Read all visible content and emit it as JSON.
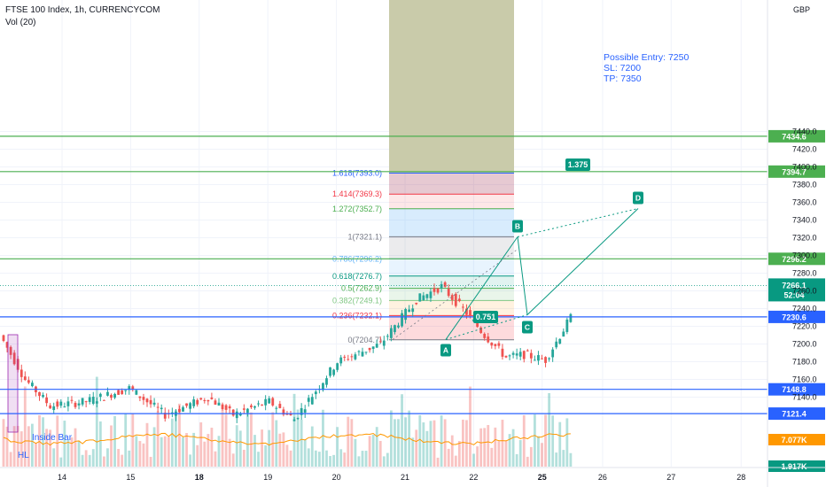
{
  "header": {
    "title": "FTSE 100 Index, 1h, CURRENCYCOM",
    "indicator": "Vol (20)",
    "currency": "GBP"
  },
  "note": {
    "entry": "Possible Entry: 7250",
    "sl": "SL: 7200",
    "tp": "TP: 7350"
  },
  "annotations": {
    "inside_bar": "Inside Bar",
    "hl": "HL"
  },
  "colors": {
    "up": "#26a69a",
    "down": "#ef5350",
    "green_line": "#4caf50",
    "blue_line": "#2962ff",
    "orange_ma": "#ff9800",
    "harmonic": "#089981"
  },
  "chart_data": {
    "type": "candlestick",
    "title": "FTSE 100 Index, 1h, CURRENCYCOM",
    "xlabel": "",
    "ylabel": "GBP",
    "ylim": [
      7100,
      7450
    ],
    "y_ticks": [
      7140,
      7160,
      7180,
      7200,
      7220,
      7240,
      7260,
      7280,
      7300,
      7320,
      7340,
      7360,
      7380,
      7400,
      7420,
      7440
    ],
    "x_ticks": [
      "14",
      "15",
      "18",
      "19",
      "20",
      "21",
      "22",
      "25",
      "26",
      "27",
      "28"
    ],
    "horizontal_levels": [
      {
        "value": 7434.6,
        "color": "green",
        "label": "7434.6"
      },
      {
        "value": 7394.7,
        "color": "green",
        "label": "7394.7"
      },
      {
        "value": 7296.2,
        "color": "green",
        "label": "7296.2"
      },
      {
        "value": 7230.6,
        "color": "blue",
        "label": "7230.6"
      },
      {
        "value": 7148.8,
        "color": "blue",
        "label": "7148.8"
      },
      {
        "value": 7121.4,
        "color": "blue",
        "label": "7121.4"
      }
    ],
    "last_price": {
      "value": 7266.1,
      "countdown": "52:04"
    },
    "volume_ma_label": "7.077K",
    "volume_label": "1.917K",
    "fibonacci": [
      {
        "ratio": "0",
        "price": 7204.7,
        "label": "0(7204.7)"
      },
      {
        "ratio": "0.236",
        "price": 7232.1,
        "label": "0.236(7232.1)"
      },
      {
        "ratio": "0.382",
        "price": 7249.1,
        "label": "0.382(7249.1)"
      },
      {
        "ratio": "0.5",
        "price": 7262.9,
        "label": "0.5(7262.9)"
      },
      {
        "ratio": "0.618",
        "price": 7276.7,
        "label": "0.618(7276.7)"
      },
      {
        "ratio": "0.786",
        "price": 7296.2,
        "label": "0.786(7296.2)"
      },
      {
        "ratio": "1",
        "price": 7321.1,
        "label": "1(7321.1)"
      },
      {
        "ratio": "1.272",
        "price": 7352.7,
        "label": "1.272(7352.7)"
      },
      {
        "ratio": "1.414",
        "price": 7369.3,
        "label": "1.414(7369.3)"
      },
      {
        "ratio": "1.618",
        "price": 7393.0,
        "label": "1.618(7393.0)"
      }
    ],
    "harmonic_points": [
      {
        "name": "A",
        "date": 21.6,
        "price": 7205
      },
      {
        "name": "B",
        "date": 22.6,
        "price": 7321
      },
      {
        "name": "C",
        "date": 24.95,
        "price": 7233
      },
      {
        "name": "D",
        "date": 26.35,
        "price": 7353
      }
    ],
    "ratios": [
      {
        "label": "0.751"
      },
      {
        "label": "1.375"
      }
    ],
    "price_anchors": [
      {
        "date": 13.0,
        "price": 7210
      },
      {
        "date": 13.3,
        "price": 7160
      },
      {
        "date": 13.6,
        "price": 7130
      },
      {
        "date": 14.0,
        "price": 7135
      },
      {
        "date": 14.5,
        "price": 7150
      },
      {
        "date": 14.9,
        "price": 7120
      },
      {
        "date": 15.4,
        "price": 7140
      },
      {
        "date": 15.7,
        "price": 7120
      },
      {
        "date": 16.1,
        "price": 7135
      },
      {
        "date": 16.4,
        "price": 7115
      },
      {
        "date": 16.9,
        "price": 7180
      },
      {
        "date": 17.4,
        "price": 7200
      },
      {
        "date": 17.8,
        "price": 7250
      },
      {
        "date": 18.1,
        "price": 7265
      },
      {
        "date": 18.4,
        "price": 7235
      },
      {
        "date": 18.6,
        "price": 7210
      },
      {
        "date": 18.85,
        "price": 7185
      },
      {
        "date": 19.05,
        "price": 7188
      },
      {
        "date": 19.3,
        "price": 7182
      },
      {
        "date": 19.6,
        "price": 7230
      },
      {
        "date": 19.75,
        "price": 7280
      },
      {
        "date": 19.9,
        "price": 7320
      },
      {
        "date": 20.05,
        "price": 7350
      },
      {
        "date": 20.2,
        "price": 7335
      },
      {
        "date": 20.35,
        "price": 7310
      },
      {
        "date": 20.55,
        "price": 7280
      },
      {
        "date": 20.75,
        "price": 7265
      },
      {
        "date": 20.95,
        "price": 7245
      },
      {
        "date": 21.15,
        "price": 7260
      },
      {
        "date": 21.35,
        "price": 7245
      },
      {
        "date": 21.55,
        "price": 7210
      },
      {
        "date": 21.75,
        "price": 7260
      },
      {
        "date": 21.95,
        "price": 7280
      },
      {
        "date": 22.15,
        "price": 7275
      },
      {
        "date": 22.35,
        "price": 7285
      },
      {
        "date": 22.55,
        "price": 7310
      },
      {
        "date": 22.75,
        "price": 7280
      },
      {
        "date": 23.0,
        "price": 7245
      },
      {
        "date": 23.2,
        "price": 7240
      },
      {
        "date": 23.4,
        "price": 7255
      },
      {
        "date": 23.6,
        "price": 7250
      },
      {
        "date": 23.8,
        "price": 7262
      }
    ]
  }
}
